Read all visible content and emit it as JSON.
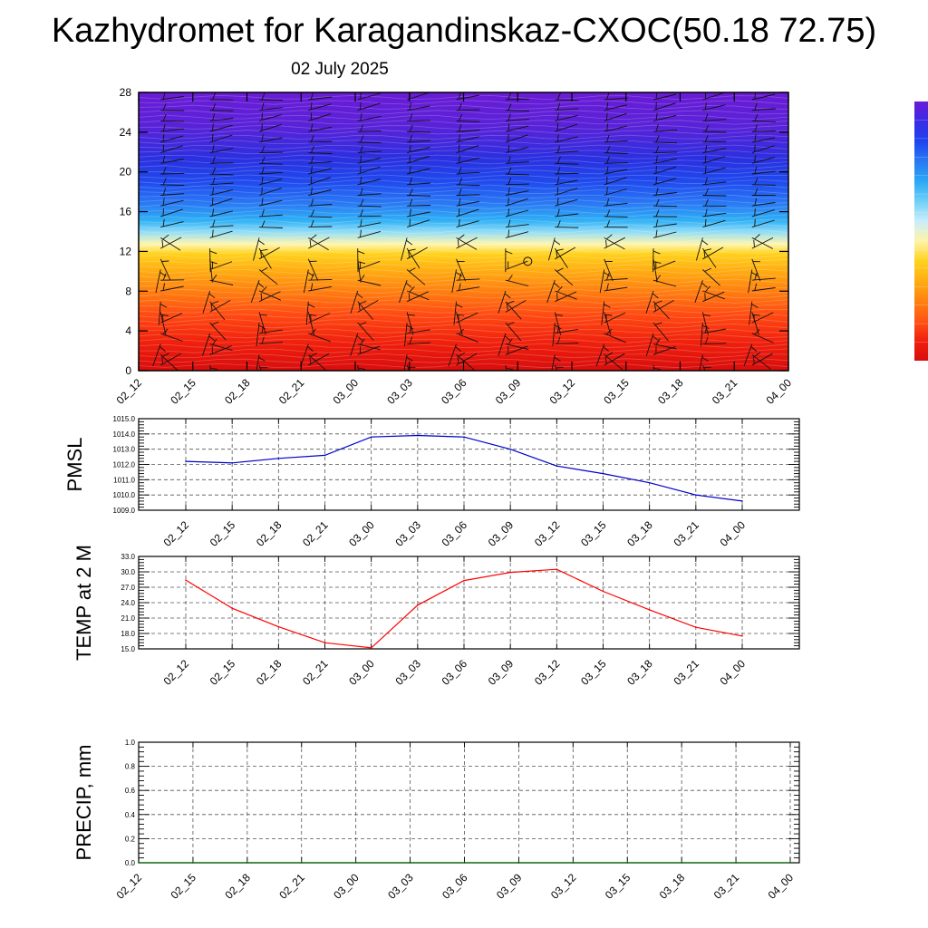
{
  "title": "Kazhydromet for Karagandinskaz-CXOC(50.18 72.75)",
  "date": "02 July 2025",
  "colors": {
    "pmsl_line": "#0000cc",
    "temp_line": "#ff0000",
    "precip_line": "#006400",
    "grid": "#555555",
    "colormap": [
      "#6a1bd6",
      "#3a2be6",
      "#1e44ee",
      "#2a79f4",
      "#29a8f5",
      "#6fd0f7",
      "#c8eefc",
      "#fff4a8",
      "#ffd21e",
      "#ffad12",
      "#ff8210",
      "#ff5414",
      "#f0200d",
      "#d80d0d"
    ]
  },
  "chart_data": [
    {
      "id": "upper-air",
      "type": "heatmap",
      "title": "",
      "xlabel": "",
      "ylabel": "",
      "x_categories": [
        "02_12",
        "02_15",
        "02_18",
        "02_21",
        "03_00",
        "03_03",
        "03_06",
        "03_09",
        "03_12",
        "03_15",
        "03_18",
        "03_21",
        "04_00"
      ],
      "y_ticks": [
        0,
        4,
        8,
        12,
        16,
        20,
        24,
        28
      ],
      "ylim": [
        0,
        28
      ],
      "colorbar": "right",
      "wind_barbs": true,
      "calm_marker": {
        "x": "03_09",
        "y": 11
      }
    },
    {
      "id": "pmsl",
      "type": "line",
      "title": "",
      "xlabel": "",
      "ylabel": "PMSL",
      "categories": [
        "02_12",
        "02_15",
        "02_18",
        "02_21",
        "03_00",
        "03_03",
        "03_06",
        "03_09",
        "03_12",
        "03_15",
        "03_18",
        "03_21",
        "04_00"
      ],
      "values": [
        1012.2,
        1012.1,
        1012.4,
        1012.6,
        1013.8,
        1013.9,
        1013.8,
        1013.0,
        1011.9,
        1011.4,
        1010.8,
        1010.0,
        1009.6
      ],
      "ylim": [
        1009,
        1015
      ],
      "y_ticks": [
        "1009.0",
        "1010.0",
        "1011.0",
        "1012.0",
        "1013.0",
        "1014.0",
        "1015.0"
      ],
      "grid": true
    },
    {
      "id": "temp",
      "type": "line",
      "title": "",
      "xlabel": "",
      "ylabel": "TEMP at 2 M",
      "categories": [
        "02_12",
        "02_15",
        "02_18",
        "02_21",
        "03_00",
        "03_03",
        "03_06",
        "03_09",
        "03_12",
        "03_15",
        "03_18",
        "03_21",
        "04_00"
      ],
      "values": [
        28.4,
        22.9,
        19.3,
        16.2,
        15.2,
        23.5,
        28.3,
        29.9,
        30.5,
        26.2,
        22.6,
        19.2,
        17.5
      ],
      "ylim": [
        15,
        33
      ],
      "y_ticks": [
        "15.0",
        "18.0",
        "21.0",
        "24.0",
        "27.0",
        "30.0",
        "33.0"
      ],
      "grid": true
    },
    {
      "id": "precip",
      "type": "line",
      "title": "",
      "xlabel": "",
      "ylabel": "PRECIP, mm",
      "categories": [
        "02_12",
        "02_15",
        "02_18",
        "02_21",
        "03_00",
        "03_03",
        "03_06",
        "03_09",
        "03_12",
        "03_15",
        "03_18",
        "03_21",
        "04_00"
      ],
      "values": [
        0,
        0,
        0,
        0,
        0,
        0,
        0,
        0,
        0,
        0,
        0,
        0,
        0
      ],
      "ylim": [
        0,
        1
      ],
      "y_ticks": [
        "0.0",
        "0.2",
        "0.4",
        "0.6",
        "0.8",
        "1.0"
      ],
      "grid": true
    }
  ]
}
